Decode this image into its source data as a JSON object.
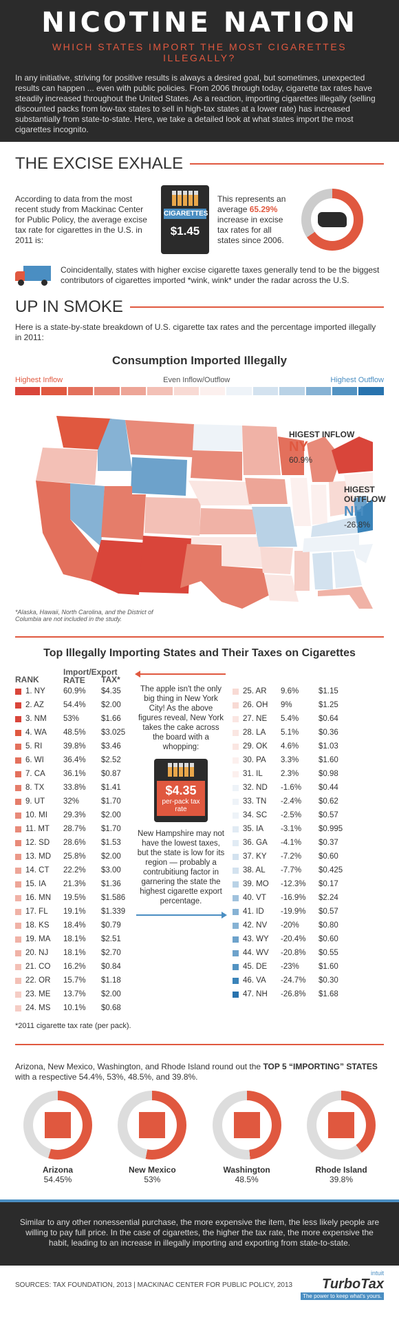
{
  "hero": {
    "title": "NICOTINE NATION",
    "subtitle": "WHICH STATES IMPORT THE MOST CIGARETTES ILLEGALLY?",
    "intro": "In any initiative, striving for positive results is always a desired goal, but sometimes, unexpected results can happen ... even with public policies. From 2006 through today, cigarette tax rates have steadily increased throughout the United States. As a reaction, importing cigarettes illegally (selling discounted packs from low-tax states to sell in high-tax states at a lower rate) has increased substantially from state-to-state. Here, we take a detailed look at what states import the most cigarettes incognito."
  },
  "excise": {
    "title": "THE EXCISE EXHALE",
    "text": "According to data from the most recent study from Mackinac Center for Public Policy, the average excise tax rate for cigarettes in the U.S. in 2011 is:",
    "pack_label": "CIGARETTES",
    "price": "$1.45",
    "increase_pre": "This represents an average ",
    "increase_pct": "65.29%",
    "increase_post": " increase in excise tax rates for all states since 2006.",
    "donut_fraction": 0.6529,
    "truck_text": "Coincidentally, states with higher excise cigarette taxes generally tend to be the biggest contributors of cigarettes imported *wink, wink* under the radar across the U.S."
  },
  "smoke": {
    "title": "UP IN SMOKE",
    "intro": "Here is a state-by-state breakdown of U.S. cigarette tax rates and the percentage imported illegally in 2011:",
    "map_title": "Consumption Imported Illegally",
    "legend": [
      "Highest Inflow",
      "Even Inflow/Outflow",
      "Highest Outflow"
    ],
    "inflow_label": "HIGEST INFLOW",
    "inflow_state": "NY",
    "inflow_pct": "60.9%",
    "outflow_label": "HIGEST OUTFLOW",
    "outflow_state": "NH",
    "outflow_pct": "-26.8%",
    "map_note": "*Alaska, Hawaii, North Carolina, and the District of Columbia are not included in the study."
  },
  "table": {
    "title": "Top Illegally Importing States and Their Taxes on Cigarettes",
    "head_rank": "RANK",
    "head_rate": "Import/Export RATE",
    "head_tax": "TAX*",
    "left": [
      {
        "st": "1. NY",
        "rate": "60.9%",
        "tax": "$4.35",
        "c": "#d9453a"
      },
      {
        "st": "2. AZ",
        "rate": "54.4%",
        "tax": "$2.00",
        "c": "#d9453a"
      },
      {
        "st": "3. NM",
        "rate": "53%",
        "tax": "$1.66",
        "c": "#d9453a"
      },
      {
        "st": "4. WA",
        "rate": "48.5%",
        "tax": "$3.025",
        "c": "#e0583f"
      },
      {
        "st": "5. RI",
        "rate": "39.8%",
        "tax": "$3.46",
        "c": "#e3705c"
      },
      {
        "st": "6. WI",
        "rate": "36.4%",
        "tax": "$2.52",
        "c": "#e3705c"
      },
      {
        "st": "7. CA",
        "rate": "36.1%",
        "tax": "$0.87",
        "c": "#e3705c"
      },
      {
        "st": "8. TX",
        "rate": "33.8%",
        "tax": "$1.41",
        "c": "#e57d6a"
      },
      {
        "st": "9. UT",
        "rate": "32%",
        "tax": "$1.70",
        "c": "#e57d6a"
      },
      {
        "st": "10. MI",
        "rate": "29.3%",
        "tax": "$2.00",
        "c": "#e88a79"
      },
      {
        "st": "11. MT",
        "rate": "28.7%",
        "tax": "$1.70",
        "c": "#e88a79"
      },
      {
        "st": "12. SD",
        "rate": "28.6%",
        "tax": "$1.53",
        "c": "#e88a79"
      },
      {
        "st": "13. MD",
        "rate": "25.8%",
        "tax": "$2.00",
        "c": "#eb9888"
      },
      {
        "st": "14. CT",
        "rate": "22.2%",
        "tax": "$3.00",
        "c": "#eda597"
      },
      {
        "st": "15. IA",
        "rate": "21.3%",
        "tax": "$1.36",
        "c": "#eda597"
      },
      {
        "st": "16. MN",
        "rate": "19.5%",
        "tax": "$1.586",
        "c": "#f0b2a6"
      },
      {
        "st": "17. FL",
        "rate": "19.1%",
        "tax": "$1.339",
        "c": "#f0b2a6"
      },
      {
        "st": "18. KS",
        "rate": "18.4%",
        "tax": "$0.79",
        "c": "#f0b2a6"
      },
      {
        "st": "19. MA",
        "rate": "18.1%",
        "tax": "$2.51",
        "c": "#f0b2a6"
      },
      {
        "st": "20. NJ",
        "rate": "18.1%",
        "tax": "$2.70",
        "c": "#f0b2a6"
      },
      {
        "st": "21. CO",
        "rate": "16.2%",
        "tax": "$0.84",
        "c": "#f3c0b6"
      },
      {
        "st": "22. OR",
        "rate": "15.7%",
        "tax": "$1.18",
        "c": "#f3c0b6"
      },
      {
        "st": "23. ME",
        "rate": "13.7%",
        "tax": "$2.00",
        "c": "#f5cdc5"
      },
      {
        "st": "24. MS",
        "rate": "10.1%",
        "tax": "$0.68",
        "c": "#f5cdc5"
      }
    ],
    "right": [
      {
        "st": "25. AR",
        "rate": "9.6%",
        "tax": "$1.15",
        "c": "#f8dad4"
      },
      {
        "st": "26. OH",
        "rate": "9%",
        "tax": "$1.25",
        "c": "#f8dad4"
      },
      {
        "st": "27. NE",
        "rate": "5.4%",
        "tax": "$0.64",
        "c": "#fae6e2"
      },
      {
        "st": "28. LA",
        "rate": "5.1%",
        "tax": "$0.36",
        "c": "#fae6e2"
      },
      {
        "st": "29. OK",
        "rate": "4.6%",
        "tax": "$1.03",
        "c": "#fae6e2"
      },
      {
        "st": "30. PA",
        "rate": "3.3%",
        "tax": "$1.60",
        "c": "#fcf0ee"
      },
      {
        "st": "31. IL",
        "rate": "2.3%",
        "tax": "$0.98",
        "c": "#fcf0ee"
      },
      {
        "st": "32. ND",
        "rate": "-1.6%",
        "tax": "$0.44",
        "c": "#eef3f8"
      },
      {
        "st": "33. TN",
        "rate": "-2.4%",
        "tax": "$0.62",
        "c": "#eef3f8"
      },
      {
        "st": "34. SC",
        "rate": "-2.5%",
        "tax": "$0.57",
        "c": "#eef3f8"
      },
      {
        "st": "35. IA",
        "rate": "-3.1%",
        "tax": "$0.995",
        "c": "#e1ebf4"
      },
      {
        "st": "36. GA",
        "rate": "-4.1%",
        "tax": "$0.37",
        "c": "#e1ebf4"
      },
      {
        "st": "37. KY",
        "rate": "-7.2%",
        "tax": "$0.60",
        "c": "#d3e2ef"
      },
      {
        "st": "38. AL",
        "rate": "-7.7%",
        "tax": "$0.425",
        "c": "#d3e2ef"
      },
      {
        "st": "39. MO",
        "rate": "-12.3%",
        "tax": "$0.17",
        "c": "#b9d2e6"
      },
      {
        "st": "40. VT",
        "rate": "-16.9%",
        "tax": "$2.24",
        "c": "#a0c2dd"
      },
      {
        "st": "41. ID",
        "rate": "-19.9%",
        "tax": "$0.57",
        "c": "#86b2d4"
      },
      {
        "st": "42. NV",
        "rate": "-20%",
        "tax": "$0.80",
        "c": "#86b2d4"
      },
      {
        "st": "43. WY",
        "rate": "-20.4%",
        "tax": "$0.60",
        "c": "#6da2cb"
      },
      {
        "st": "44. WV",
        "rate": "-20.8%",
        "tax": "$0.55",
        "c": "#6da2cb"
      },
      {
        "st": "45. DE",
        "rate": "-23%",
        "tax": "$1.60",
        "c": "#5393c2"
      },
      {
        "st": "46. VA",
        "rate": "-24.7%",
        "tax": "$0.30",
        "c": "#3a83b9"
      },
      {
        "st": "47. NH",
        "rate": "-26.8%",
        "tax": "$1.68",
        "c": "#2873ae"
      }
    ],
    "mid_top": "The apple isn't the only big thing in New York City! As the above figures reveal, New York takes the cake across the board with a whopping:",
    "mid_price": "$4.35",
    "mid_price_sub": "per-pack tax rate",
    "mid_bottom": "New Hampshire may not have the lowest taxes, but the state is low for its region — probably a contrubitiung factor in garnering the state the highest cigarette export percentage.",
    "tax_note": "*2011 cigarette tax rate (per pack)."
  },
  "top5": {
    "text_pre": "Arizona, New Mexico, Washington, and Rhode Island round out the ",
    "text_bold": "TOP 5 “IMPORTING” STATES",
    "text_post": " with a respective 54.4%, 53%, 48.5%, and 39.8%.",
    "states": [
      {
        "name": "Arizona",
        "value": "54.45%",
        "frac": 0.5445
      },
      {
        "name": "New Mexico",
        "value": "53%",
        "frac": 0.53
      },
      {
        "name": "Washington",
        "value": "48.5%",
        "frac": 0.485
      },
      {
        "name": "Rhode Island",
        "value": "39.8%",
        "frac": 0.398
      }
    ]
  },
  "summary": "Similar to any other nonessential purchase, the more expensive the item, the less likely people are willing to pay full price. In the case of cigarettes, the higher the tax rate, the more expensive the habit, leading to an increase in illegally importing and exporting from state-to-state.",
  "footer": {
    "sources": "SOURCES: TAX FOUNDATION, 2013  |  MACKINAC CENTER FOR PUBLIC POLICY, 2013",
    "intuit": "intuit",
    "brand": "TurboTax",
    "tagline": "The power to keep what's yours."
  },
  "colors": {
    "accent": "#e0583f",
    "blue": "#4a8ec2",
    "dark": "#2b2b2b"
  }
}
